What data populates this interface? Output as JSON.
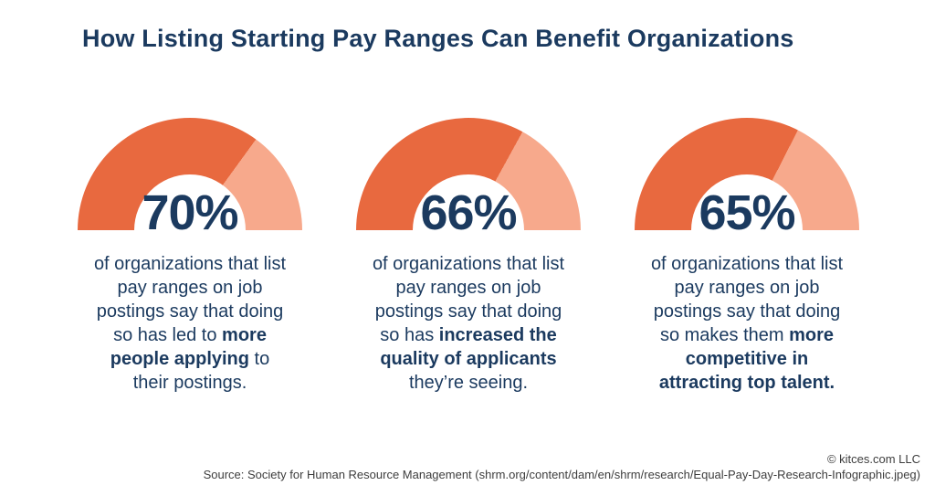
{
  "title": "How Listing Starting Pay Ranges Can Benefit Organizations",
  "chart_data": {
    "type": "gauge",
    "title": "How Listing Starting Pay Ranges Can Benefit Organizations",
    "unit": "%",
    "gauge_range": [
      0,
      100
    ],
    "gauge_shape": "semicircle-donut",
    "colors": {
      "filled": "#E8693F",
      "remainder": "#F7A98C",
      "value_text": "#1B3A5F",
      "title_text": "#1B3A5F"
    },
    "series": [
      {
        "value": 70,
        "label": "70%",
        "description": "of organizations that list\npay ranges on job\npostings say that doing\nso has led to **more\npeople applying** to\ntheir postings."
      },
      {
        "value": 66,
        "label": "66%",
        "description": "of organizations that list\npay ranges on job\npostings say that doing\nso has **increased the\nquality of applicants**\nthey’re seeing."
      },
      {
        "value": 65,
        "label": "65%",
        "description": "of organizations that list\npay ranges on job\npostings say that doing\nso makes them **more\ncompetitive in\nattracting top talent.**"
      }
    ]
  },
  "footer": {
    "copyright": "© kitces.com LLC",
    "source": "Source: Society for Human Resource Management (shrm.org/content/dam/en/shrm/research/Equal-Pay-Day-Research-Infographic.jpeg)"
  }
}
